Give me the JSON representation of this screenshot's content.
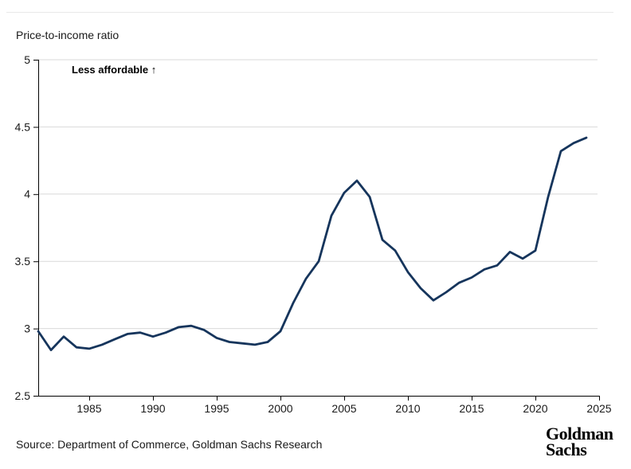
{
  "header": {
    "title": "Price-to-income ratio"
  },
  "annotation": "Less affordable ↑",
  "footer": {
    "source": "Source: Department of Commerce, Goldman Sachs Research",
    "logo_line1": "Goldman",
    "logo_line2": "Sachs"
  },
  "colors": {
    "line": "#16355c",
    "grid": "#d9d9d9",
    "axis": "#000000",
    "text": "#1a1a1a",
    "top_rule": "#e9e9e9"
  },
  "chart_data": {
    "type": "line",
    "title": "Price-to-income ratio",
    "series_name": "Price-to-income ratio",
    "x": [
      1981,
      1982,
      1983,
      1984,
      1985,
      1986,
      1987,
      1988,
      1989,
      1990,
      1991,
      1992,
      1993,
      1994,
      1995,
      1996,
      1997,
      1998,
      1999,
      2000,
      2001,
      2002,
      2003,
      2004,
      2005,
      2006,
      2007,
      2008,
      2009,
      2010,
      2011,
      2012,
      2013,
      2014,
      2015,
      2016,
      2017,
      2018,
      2019,
      2020,
      2021,
      2022,
      2023,
      2024
    ],
    "values": [
      2.98,
      2.84,
      2.94,
      2.86,
      2.85,
      2.88,
      2.92,
      2.96,
      2.97,
      2.94,
      2.97,
      3.01,
      3.02,
      2.99,
      2.93,
      2.9,
      2.89,
      2.88,
      2.9,
      2.98,
      3.19,
      3.37,
      3.5,
      3.84,
      4.01,
      4.1,
      3.98,
      3.66,
      3.58,
      3.42,
      3.3,
      3.21,
      3.27,
      3.34,
      3.38,
      3.44,
      3.47,
      3.57,
      3.52,
      3.58,
      3.98,
      4.32,
      4.38,
      4.42
    ],
    "xlabel": "",
    "ylabel": "Price-to-income ratio",
    "xlim": [
      1981,
      2025
    ],
    "ylim": [
      2.5,
      5
    ],
    "xticks": [
      1985,
      1990,
      1995,
      2000,
      2005,
      2010,
      2015,
      2020,
      2025
    ],
    "yticks": [
      2.5,
      3,
      3.5,
      4,
      4.5,
      5
    ],
    "grid": "horizontal",
    "legend": "none",
    "annotation": "Less affordable ↑",
    "line_color": "#16355c"
  }
}
